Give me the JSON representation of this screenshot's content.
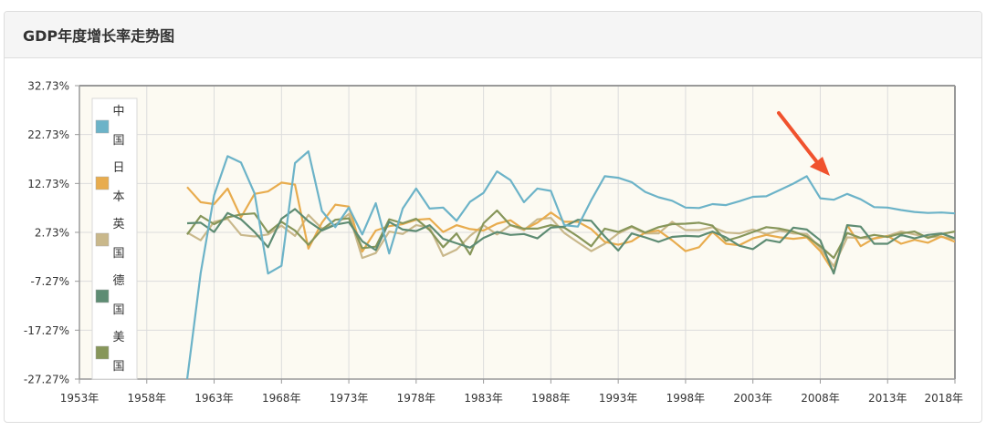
{
  "panel": {
    "title": "GDP年度增长率走势图"
  },
  "colors": {
    "plot_bg": "#fcfaf2",
    "grid": "#dcdcdc",
    "axis": "#999999",
    "text": "#333333",
    "arrow": "#f0522e"
  },
  "chart_data": {
    "type": "line",
    "title": "",
    "xlabel": "",
    "ylabel": "",
    "xlim": [
      1953,
      2018
    ],
    "ylim": [
      -27.27,
      32.73
    ],
    "grid": true,
    "legend_position": "top-left",
    "x_ticks": [
      "1953年",
      "1958年",
      "1963年",
      "1968年",
      "1973年",
      "1978年",
      "1983年",
      "1988年",
      "1993年",
      "1998年",
      "2003年",
      "2008年",
      "2013年",
      "2018年"
    ],
    "x_tick_values": [
      1953,
      1958,
      1963,
      1968,
      1973,
      1978,
      1983,
      1988,
      1993,
      1998,
      2003,
      2008,
      2013,
      2018
    ],
    "y_ticks": [
      "32.73%",
      "22.73%",
      "12.73%",
      "2.73%",
      "-7.27%",
      "-17.27%",
      "-27.27%"
    ],
    "y_tick_values": [
      32.73,
      22.73,
      12.73,
      2.73,
      -7.27,
      -17.27,
      -27.27
    ],
    "x": [
      1961,
      1962,
      1963,
      1964,
      1965,
      1966,
      1967,
      1968,
      1969,
      1970,
      1971,
      1972,
      1973,
      1974,
      1975,
      1976,
      1977,
      1978,
      1979,
      1980,
      1981,
      1982,
      1983,
      1984,
      1985,
      1986,
      1987,
      1988,
      1989,
      1990,
      1991,
      1992,
      1993,
      1994,
      1995,
      1996,
      1997,
      1998,
      1999,
      2000,
      2001,
      2002,
      2003,
      2004,
      2005,
      2006,
      2007,
      2008,
      2009,
      2010,
      2011,
      2012,
      2013,
      2014,
      2015,
      2016,
      2017,
      2018
    ],
    "series": [
      {
        "name": "中国",
        "color": "#6cb3c8",
        "values": [
          -27.3,
          -5.6,
          10.3,
          18.3,
          17.0,
          10.7,
          -5.7,
          -4.1,
          16.9,
          19.3,
          7.1,
          3.8,
          7.8,
          2.3,
          8.7,
          -1.6,
          7.6,
          11.7,
          7.6,
          7.8,
          5.1,
          9.0,
          10.8,
          15.2,
          13.4,
          8.9,
          11.7,
          11.2,
          4.2,
          3.9,
          9.3,
          14.2,
          13.9,
          13.0,
          11.0,
          9.9,
          9.2,
          7.8,
          7.7,
          8.5,
          8.3,
          9.1,
          10.0,
          10.1,
          11.4,
          12.7,
          14.2,
          9.7,
          9.4,
          10.6,
          9.5,
          7.9,
          7.8,
          7.3,
          6.9,
          6.7,
          6.8,
          6.6
        ]
      },
      {
        "name": "日本",
        "color": "#e8ac4e",
        "values": [
          12.0,
          8.9,
          8.5,
          11.7,
          5.8,
          10.6,
          11.1,
          12.9,
          12.5,
          -0.6,
          4.7,
          8.4,
          8.0,
          -1.2,
          3.1,
          4.0,
          4.4,
          5.3,
          5.5,
          2.8,
          4.2,
          3.4,
          3.1,
          4.5,
          5.2,
          3.3,
          4.7,
          6.8,
          4.9,
          4.9,
          3.4,
          0.8,
          0.2,
          0.9,
          2.7,
          3.1,
          1.1,
          -1.1,
          -0.3,
          2.8,
          0.4,
          0.1,
          1.5,
          2.2,
          1.7,
          1.4,
          1.7,
          -1.1,
          -5.4,
          4.2,
          -0.1,
          1.5,
          2.0,
          0.4,
          1.2,
          0.6,
          1.9,
          0.8
        ]
      },
      {
        "name": "英国",
        "color": "#c9b88b",
        "values": [
          2.7,
          1.1,
          4.9,
          5.5,
          2.2,
          1.9,
          2.3,
          4.1,
          2.0,
          6.3,
          3.5,
          4.3,
          6.5,
          -2.5,
          -1.5,
          2.9,
          2.4,
          4.2,
          3.7,
          -2.1,
          -0.8,
          2.0,
          4.2,
          2.3,
          4.2,
          3.2,
          5.4,
          5.7,
          2.6,
          0.7,
          -1.1,
          0.4,
          2.5,
          3.8,
          2.5,
          2.5,
          4.9,
          3.2,
          3.2,
          3.8,
          2.7,
          2.5,
          3.3,
          2.4,
          3.1,
          2.5,
          2.4,
          -0.5,
          -4.2,
          1.7,
          1.6,
          1.4,
          2.0,
          2.9,
          2.3,
          1.8,
          1.8,
          1.4
        ]
      },
      {
        "name": "德国",
        "color": "#5e8c73",
        "values": [
          4.6,
          4.7,
          2.8,
          6.7,
          5.4,
          2.8,
          -0.3,
          5.5,
          7.5,
          5.0,
          3.1,
          4.3,
          4.8,
          0.9,
          -0.9,
          4.9,
          3.3,
          3.0,
          4.2,
          1.4,
          0.5,
          -0.4,
          1.6,
          2.8,
          2.2,
          2.4,
          1.5,
          3.7,
          3.9,
          5.3,
          5.1,
          1.9,
          -1.0,
          2.5,
          1.7,
          0.8,
          1.8,
          2.0,
          1.9,
          2.9,
          1.7,
          0.0,
          -0.7,
          1.2,
          0.7,
          3.7,
          3.3,
          1.1,
          -5.7,
          4.2,
          3.9,
          0.4,
          0.4,
          2.2,
          1.5,
          2.2,
          2.5,
          1.5
        ]
      },
      {
        "name": "美国",
        "color": "#87965a",
        "values": [
          2.3,
          6.1,
          4.4,
          5.8,
          6.4,
          6.6,
          2.7,
          4.9,
          3.1,
          0.2,
          3.3,
          5.3,
          5.6,
          -0.5,
          -0.2,
          5.4,
          4.6,
          5.5,
          3.2,
          -0.3,
          2.5,
          -1.8,
          4.6,
          7.2,
          4.2,
          3.5,
          3.5,
          4.2,
          3.7,
          1.9,
          -0.1,
          3.5,
          2.8,
          4.0,
          2.7,
          3.8,
          4.4,
          4.5,
          4.7,
          4.1,
          1.0,
          1.8,
          2.8,
          3.8,
          3.5,
          2.9,
          1.9,
          -0.1,
          -2.5,
          2.6,
          1.6,
          2.2,
          1.8,
          2.5,
          2.9,
          1.6,
          2.4,
          2.9
        ]
      }
    ]
  }
}
